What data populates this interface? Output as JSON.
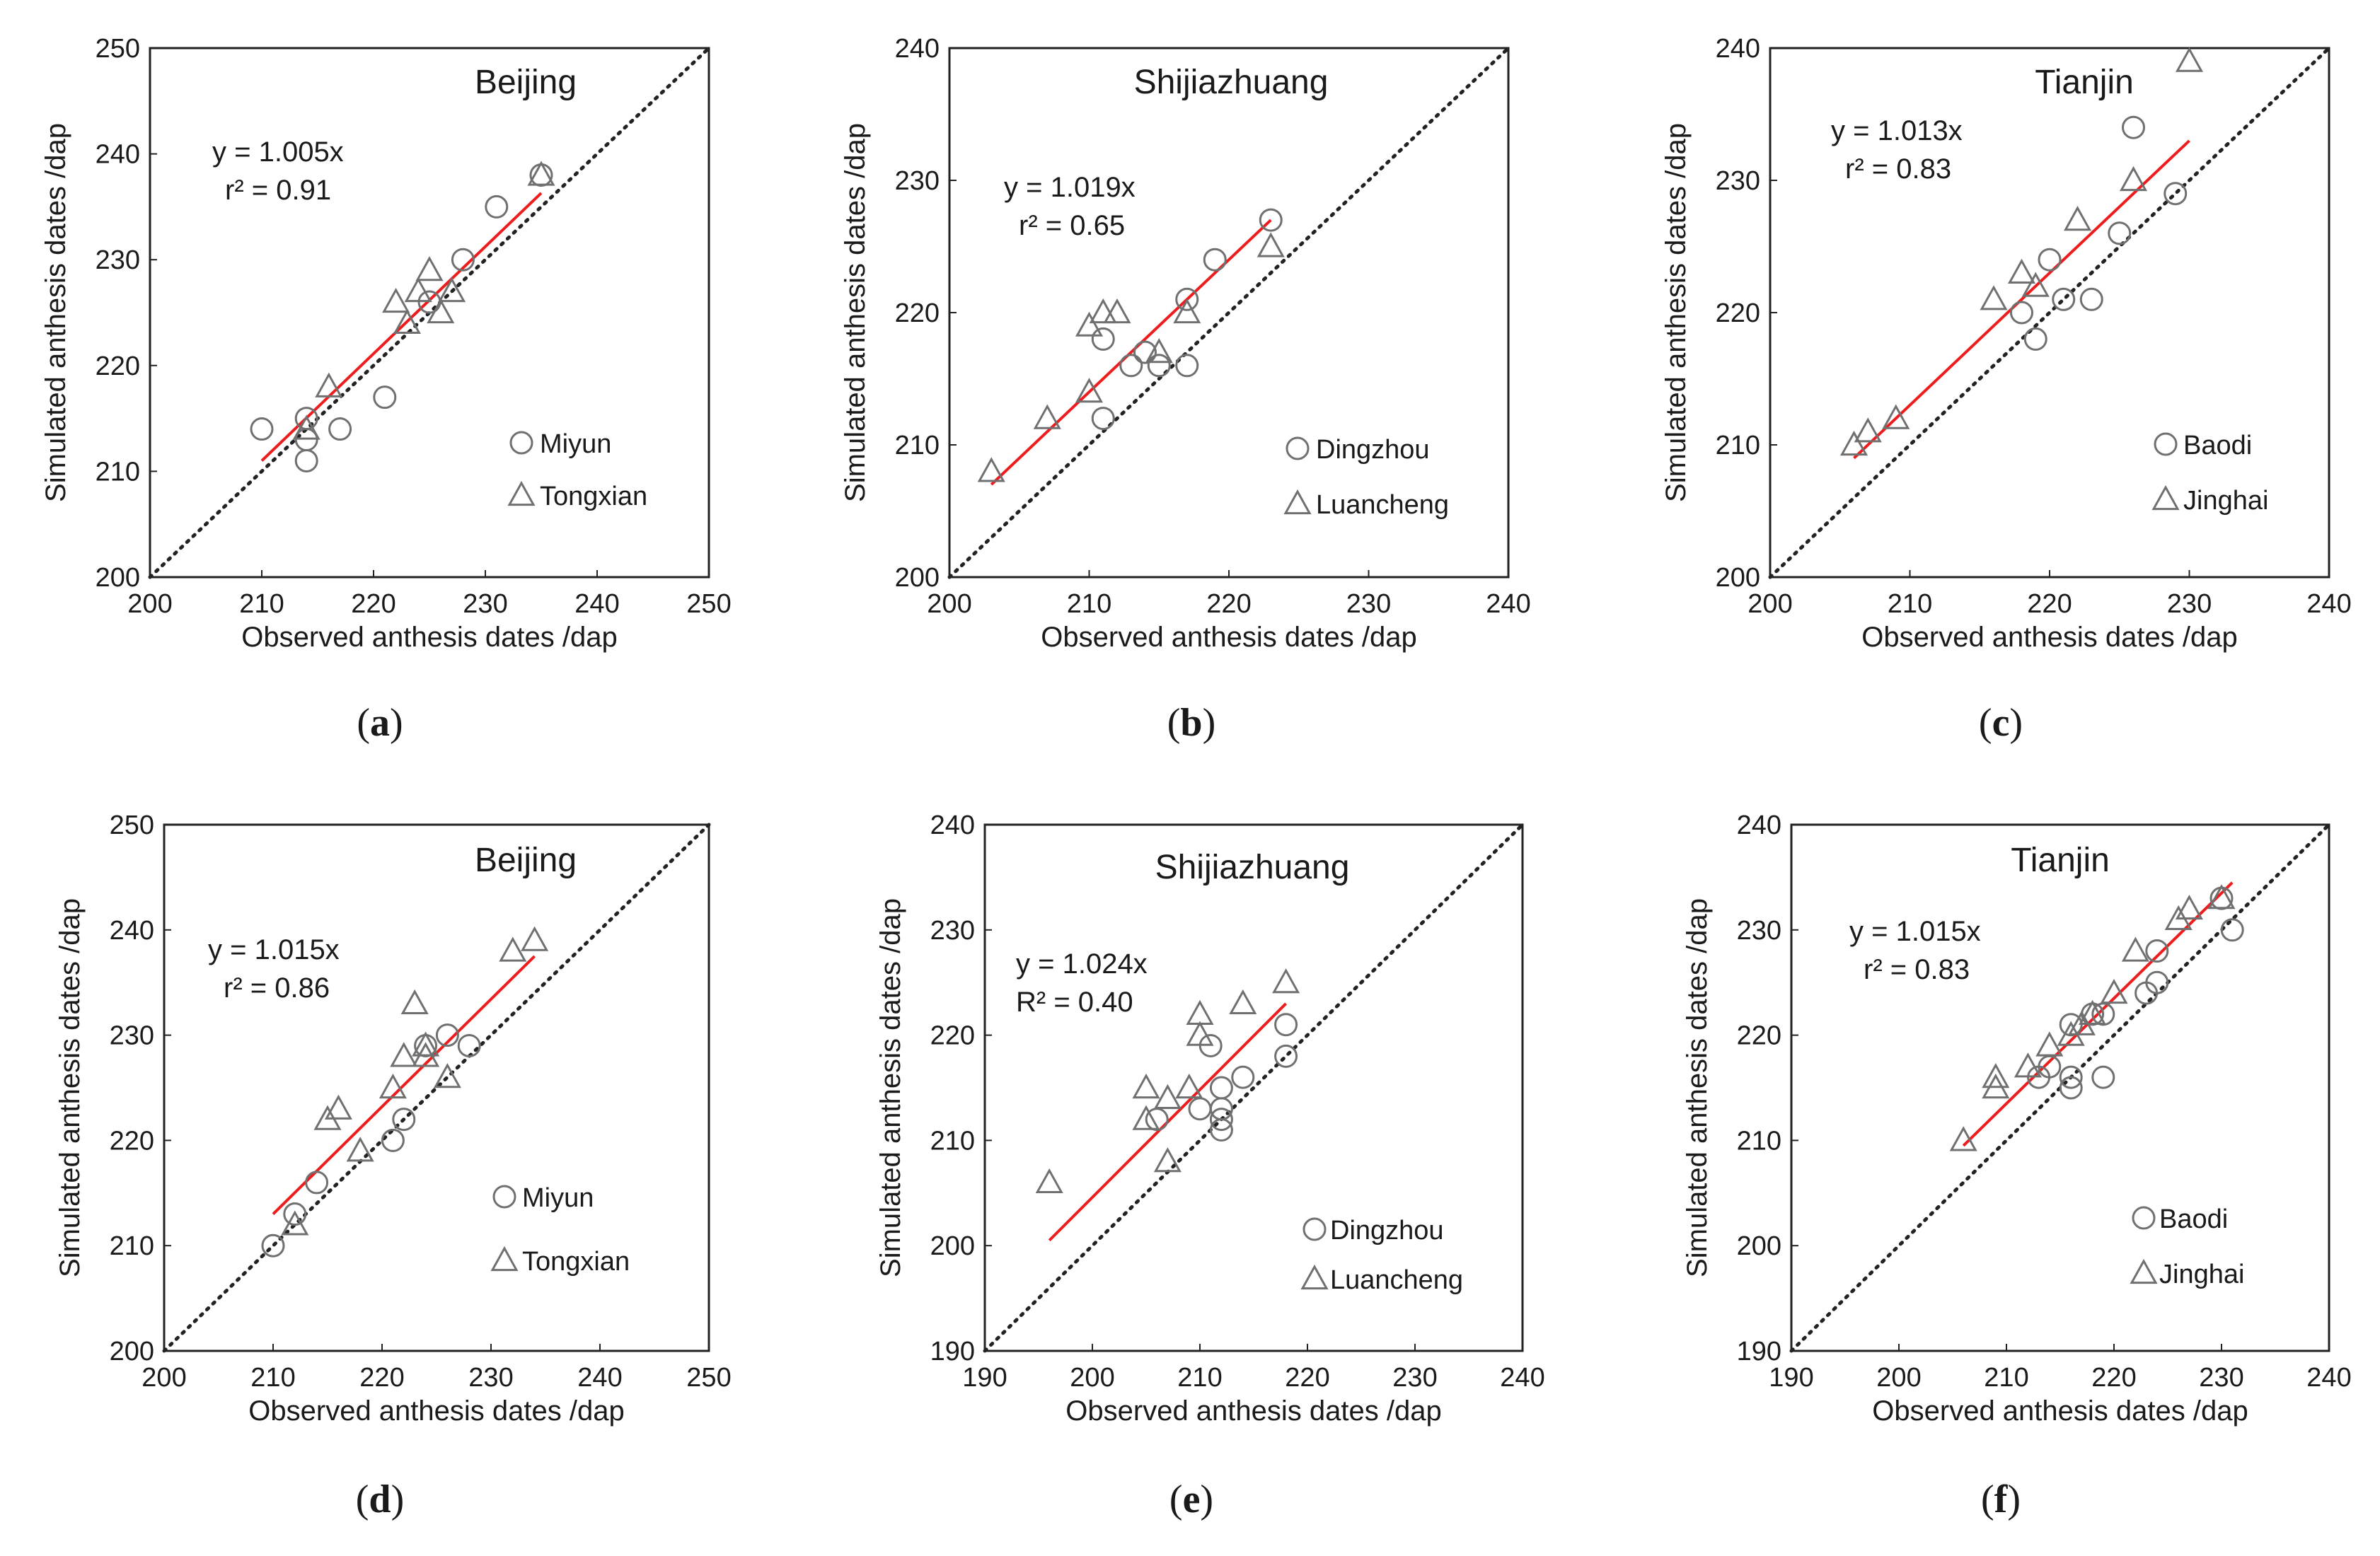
{
  "chart_data": [
    {
      "type": "scatter",
      "panel_label": "(a)",
      "title": "Beijing",
      "xlabel": "Observed anthesis dates /dap",
      "ylabel": "Simulated anthesis dates /dap",
      "xlim": [
        200,
        250
      ],
      "ylim": [
        200,
        250
      ],
      "xticks": [
        200,
        210,
        220,
        230,
        240,
        250
      ],
      "yticks": [
        200,
        210,
        220,
        230,
        240,
        250
      ],
      "one_to_one_line": true,
      "equation": "y = 1.005x",
      "r2": "r² = 0.91",
      "fit": {
        "x": [
          210,
          235
        ],
        "y": [
          211,
          236.3
        ]
      },
      "series": [
        {
          "name": "Miyun",
          "marker": "circle",
          "points": [
            [
              210,
              214
            ],
            [
              214,
              215
            ],
            [
              214,
              211
            ],
            [
              214,
              213
            ],
            [
              217,
              214
            ],
            [
              221,
              217
            ],
            [
              225,
              226
            ],
            [
              228,
              230
            ],
            [
              231,
              235
            ],
            [
              235,
              238
            ]
          ]
        },
        {
          "name": "Tongxian",
          "marker": "triangle",
          "points": [
            [
              214,
              214
            ],
            [
              216,
              218
            ],
            [
              222,
              226
            ],
            [
              223,
              224
            ],
            [
              224,
              227
            ],
            [
              225,
              229
            ],
            [
              226,
              225
            ],
            [
              227,
              227
            ],
            [
              235,
              238
            ]
          ]
        }
      ]
    },
    {
      "type": "scatter",
      "panel_label": "(b)",
      "title": "Shijiazhuang",
      "xlabel": "Observed anthesis dates /dap",
      "ylabel": "Simulated anthesis dates /dap",
      "xlim": [
        200,
        240
      ],
      "ylim": [
        200,
        240
      ],
      "xticks": [
        200,
        210,
        220,
        230,
        240
      ],
      "yticks": [
        200,
        210,
        220,
        230,
        240
      ],
      "one_to_one_line": true,
      "equation": "y = 1.019x",
      "r2": "r² = 0.65",
      "fit": {
        "x": [
          203,
          223
        ],
        "y": [
          207,
          227
        ]
      },
      "series": [
        {
          "name": "Dingzhou",
          "marker": "circle",
          "points": [
            [
              211,
              218
            ],
            [
              211,
              212
            ],
            [
              213,
              216
            ],
            [
              214,
              217
            ],
            [
              215,
              216
            ],
            [
              217,
              221
            ],
            [
              217,
              216
            ],
            [
              219,
              224
            ],
            [
              223,
              227
            ]
          ]
        },
        {
          "name": "Luancheng",
          "marker": "triangle",
          "points": [
            [
              203,
              208
            ],
            [
              207,
              212
            ],
            [
              210,
              214
            ],
            [
              210,
              219
            ],
            [
              211,
              220
            ],
            [
              212,
              220
            ],
            [
              215,
              217
            ],
            [
              217,
              220
            ],
            [
              223,
              225
            ]
          ]
        }
      ]
    },
    {
      "type": "scatter",
      "panel_label": "(c)",
      "title": "Tianjin",
      "xlabel": "Observed anthesis dates /dap",
      "ylabel": "Simulated anthesis dates /dap",
      "xlim": [
        200,
        240
      ],
      "ylim": [
        200,
        240
      ],
      "xticks": [
        200,
        210,
        220,
        230,
        240
      ],
      "yticks": [
        200,
        210,
        220,
        230,
        240
      ],
      "one_to_one_line": true,
      "equation": "y = 1.013x",
      "r2": "r² = 0.83",
      "fit": {
        "x": [
          206,
          230
        ],
        "y": [
          209,
          233
        ]
      },
      "series": [
        {
          "name": "Baodi",
          "marker": "circle",
          "points": [
            [
              218,
              220
            ],
            [
              219,
              218
            ],
            [
              220,
              224
            ],
            [
              221,
              221
            ],
            [
              223,
              221
            ],
            [
              225,
              226
            ],
            [
              226,
              234
            ],
            [
              229,
              229
            ]
          ]
        },
        {
          "name": "Jinghai",
          "marker": "triangle",
          "points": [
            [
              206,
              210
            ],
            [
              207,
              211
            ],
            [
              209,
              212
            ],
            [
              216,
              221
            ],
            [
              218,
              223
            ],
            [
              219,
              222
            ],
            [
              222,
              227
            ],
            [
              226,
              230
            ],
            [
              230,
              239
            ]
          ]
        }
      ]
    },
    {
      "type": "scatter",
      "panel_label": "(d)",
      "title": "Beijing",
      "xlabel": "Observed anthesis dates /dap",
      "ylabel": "Simulated anthesis dates /dap",
      "xlim": [
        200,
        250
      ],
      "ylim": [
        200,
        250
      ],
      "xticks": [
        200,
        210,
        220,
        230,
        240,
        250
      ],
      "yticks": [
        200,
        210,
        220,
        230,
        240,
        250
      ],
      "one_to_one_line": true,
      "equation": "y = 1.015x",
      "r2": "r² = 0.86",
      "fit": {
        "x": [
          210,
          234
        ],
        "y": [
          213,
          237.5
        ]
      },
      "series": [
        {
          "name": "Miyun",
          "marker": "circle",
          "points": [
            [
              210,
              210
            ],
            [
              212,
              213
            ],
            [
              214,
              216
            ],
            [
              221,
              220
            ],
            [
              222,
              222
            ],
            [
              224,
              229
            ],
            [
              226,
              230
            ],
            [
              228,
              229
            ]
          ]
        },
        {
          "name": "Tongxian",
          "marker": "triangle",
          "points": [
            [
              212,
              212
            ],
            [
              215,
              222
            ],
            [
              216,
              223
            ],
            [
              218,
              219
            ],
            [
              221,
              225
            ],
            [
              222,
              228
            ],
            [
              223,
              233
            ],
            [
              224,
              229
            ],
            [
              224,
              228
            ],
            [
              226,
              226
            ],
            [
              232,
              238
            ],
            [
              234,
              239
            ]
          ]
        }
      ]
    },
    {
      "type": "scatter",
      "panel_label": "(e)",
      "title": "Shijiazhuang",
      "xlabel": "Observed anthesis dates /dap",
      "ylabel": "Simulated anthesis dates /dap",
      "xlim": [
        190,
        240
      ],
      "ylim": [
        190,
        240
      ],
      "xticks": [
        190,
        200,
        210,
        220,
        230,
        240
      ],
      "yticks": [
        190,
        200,
        210,
        220,
        230,
        240
      ],
      "one_to_one_line": true,
      "equation": "y = 1.024x",
      "r2": "R² = 0.40",
      "fit": {
        "x": [
          196,
          218
        ],
        "y": [
          200.5,
          223
        ]
      },
      "series": [
        {
          "name": "Dingzhou",
          "marker": "circle",
          "points": [
            [
              206,
              212
            ],
            [
              210,
              213
            ],
            [
              211,
              219
            ],
            [
              212,
              215
            ],
            [
              212,
              213
            ],
            [
              212,
              212
            ],
            [
              212,
              211
            ],
            [
              214,
              216
            ],
            [
              218,
              221
            ],
            [
              218,
              218
            ]
          ]
        },
        {
          "name": "Luancheng",
          "marker": "triangle",
          "points": [
            [
              196,
              206
            ],
            [
              205,
              212
            ],
            [
              205,
              215
            ],
            [
              207,
              214
            ],
            [
              207,
              208
            ],
            [
              209,
              215
            ],
            [
              210,
              222
            ],
            [
              210,
              220
            ],
            [
              214,
              223
            ],
            [
              218,
              225
            ]
          ]
        }
      ]
    },
    {
      "type": "scatter",
      "panel_label": "(f)",
      "title": "Tianjin",
      "xlabel": "Observed anthesis dates /dap",
      "ylabel": "Simulated anthesis dates /dap",
      "xlim": [
        190,
        240
      ],
      "ylim": [
        190,
        240
      ],
      "xticks": [
        190,
        200,
        210,
        220,
        230,
        240
      ],
      "yticks": [
        190,
        200,
        210,
        220,
        230,
        240
      ],
      "one_to_one_line": true,
      "equation": "y = 1.015x",
      "r2": "r² = 0.83",
      "fit": {
        "x": [
          206,
          231
        ],
        "y": [
          209.5,
          234.5
        ]
      },
      "series": [
        {
          "name": "Baodi",
          "marker": "circle",
          "points": [
            [
              213,
              216
            ],
            [
              214,
              217
            ],
            [
              216,
              221
            ],
            [
              216,
              216
            ],
            [
              216,
              215
            ],
            [
              218,
              222
            ],
            [
              219,
              222
            ],
            [
              219,
              216
            ],
            [
              223,
              224
            ],
            [
              224,
              225
            ],
            [
              224,
              228
            ],
            [
              230,
              233
            ],
            [
              231,
              230
            ]
          ]
        },
        {
          "name": "Jinghai",
          "marker": "triangle",
          "points": [
            [
              206,
              210
            ],
            [
              209,
              215
            ],
            [
              209,
              216
            ],
            [
              212,
              217
            ],
            [
              214,
              219
            ],
            [
              216,
              220
            ],
            [
              217,
              221
            ],
            [
              218,
              222
            ],
            [
              220,
              224
            ],
            [
              222,
              228
            ],
            [
              226,
              231
            ],
            [
              227,
              232
            ],
            [
              230,
              233
            ]
          ]
        }
      ]
    }
  ]
}
